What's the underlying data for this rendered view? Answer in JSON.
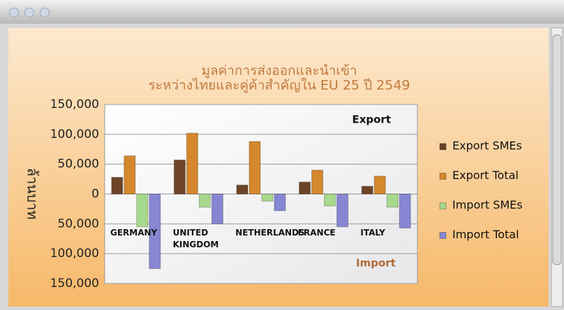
{
  "chart_data": {
    "type": "bar",
    "title": [
      "มูลค่าการส่งออกและนำเข้า",
      "ระหว่างไทยและคู่ค้าสำคัญใน EU 25 ปี 2549"
    ],
    "y_label": "ล้านบาท",
    "annotations": [
      "Export",
      "Import"
    ],
    "categories": [
      "GERMANY",
      "UNITED\nKINGDOM",
      "NETHERLANDS",
      "FRANCE",
      "ITALY"
    ],
    "series": [
      {
        "name": "Export SMEs",
        "color": "#6e4426",
        "values": [
          28000,
          57000,
          15000,
          20000,
          13000
        ]
      },
      {
        "name": "Export Total",
        "color": "#d4872c",
        "values": [
          64000,
          102000,
          88000,
          40000,
          30000
        ]
      },
      {
        "name": "Import SMEs",
        "color": "#a6d98c",
        "values": [
          -55000,
          -22000,
          -12000,
          -20000,
          -22000
        ]
      },
      {
        "name": "Import Total",
        "color": "#8686d2",
        "values": [
          -125000,
          -50000,
          -28000,
          -55000,
          -57000
        ]
      }
    ],
    "ylim": [
      -150000,
      150000
    ],
    "yticks": [
      {
        "value": -150000,
        "label": "150,000"
      },
      {
        "value": -100000,
        "label": "100,000"
      },
      {
        "value": -50000,
        "label": "50,000"
      },
      0,
      {
        "value": 50000,
        "label": "50,000"
      },
      {
        "value": 100000,
        "label": "100,000"
      },
      {
        "value": 150000,
        "label": "150,000"
      }
    ],
    "grid": true,
    "legend": "right"
  }
}
